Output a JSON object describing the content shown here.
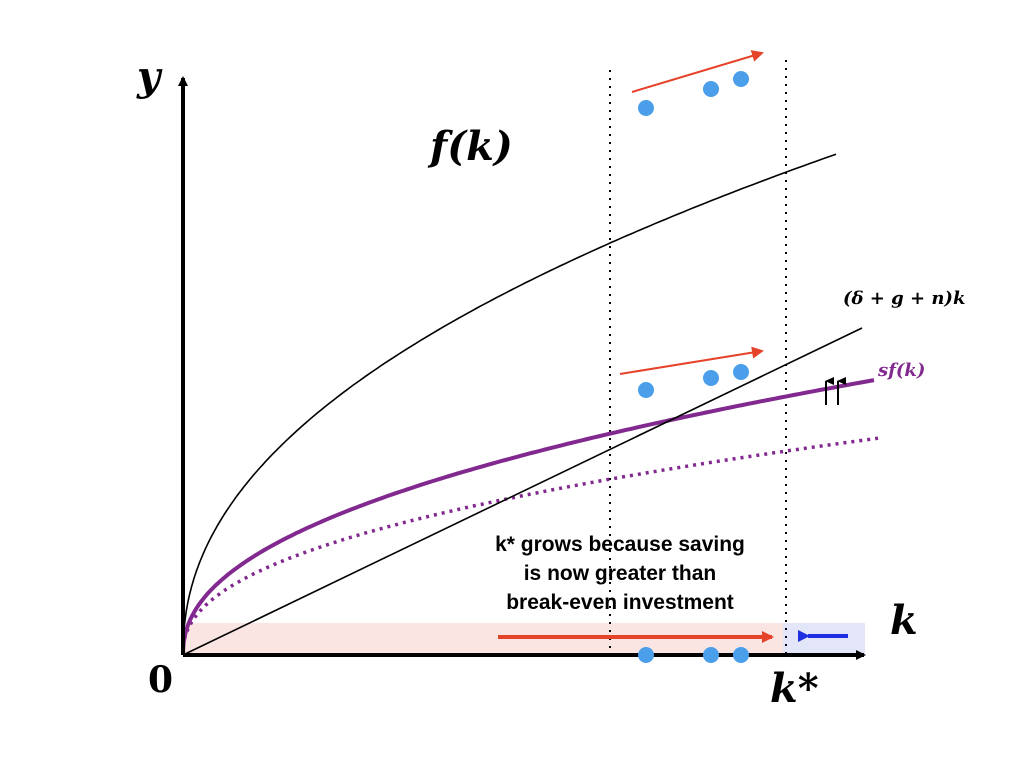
{
  "labels": {
    "y_axis": "y",
    "x_axis": "k",
    "origin": "0",
    "k_star": "k*",
    "production_curve": "f(k)",
    "savings_curve": "sf(k)",
    "break_even_line": "(δ + g + n)k",
    "shift_arrows": "↑↑",
    "annotation_lines": [
      "k* grows because saving",
      "is now greater than",
      "break-even investment"
    ]
  },
  "colors": {
    "axis": "#000000",
    "production_curve": "#000000",
    "savings_curve": "#82298f",
    "old_savings_curve": "#82298f",
    "break_even_line": "#000000",
    "dots": "#4a9eea",
    "growth_arrow": "#e6432b",
    "return_arrow": "#1d2fe0",
    "growth_region": "#fbe5e3",
    "return_region": "#e3e6f9"
  },
  "icons": {
    "upward_shift": "double-up-arrow-icon"
  }
}
